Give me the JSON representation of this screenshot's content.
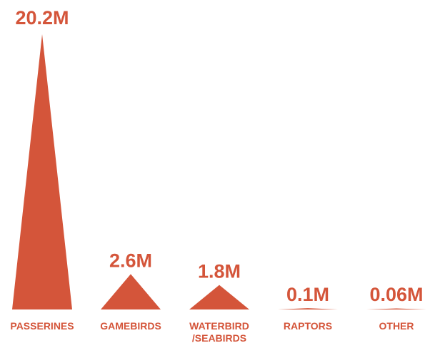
{
  "chart_data": {
    "type": "bar",
    "title": "",
    "xlabel": "",
    "ylabel": "",
    "categories": [
      "PASSERINES",
      "GAMEBIRDS",
      "WATERBIRD\n/SEABIRDS",
      "RAPTORS",
      "OTHER"
    ],
    "values": [
      20.2,
      2.6,
      1.8,
      0.1,
      0.06
    ],
    "value_labels": [
      "20.2M",
      "2.6M",
      "1.8M",
      "0.1M",
      "0.06M"
    ],
    "unit": "M",
    "ylim": [
      0,
      20.2
    ],
    "grid": false,
    "legend": "none",
    "mark_shape": "triangle",
    "color": "#D4553A"
  }
}
